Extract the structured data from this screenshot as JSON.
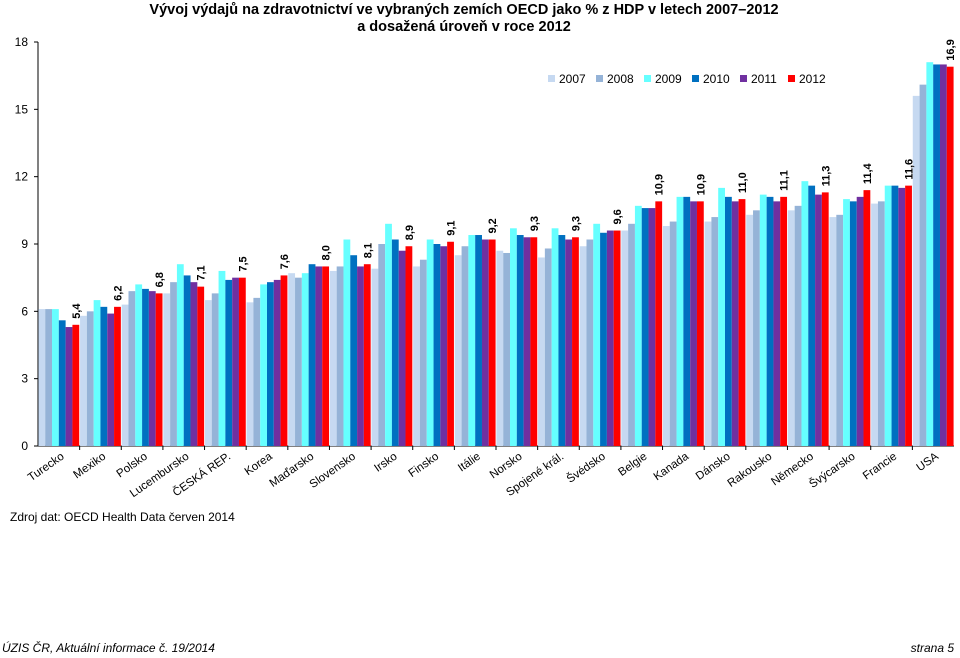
{
  "chart_data": {
    "type": "bar",
    "title": "Vývoj výdajů na zdravotnictví ve vybraných zemích OECD  jako % z HDP v letech 2007–2012",
    "subtitle": "a dosažená úroveň v roce 2012",
    "xlabel": "",
    "ylabel": "",
    "ylim": [
      0,
      18
    ],
    "yticks": [
      0,
      3,
      6,
      9,
      12,
      15,
      18
    ],
    "grid": false,
    "legend_position": "top-right",
    "categories": [
      "Turecko",
      "Mexiko",
      "Polsko",
      "Lucembursko",
      "ČESKÁ REP.",
      "Korea",
      "Maďarsko",
      "Slovensko",
      "Irsko",
      "Finsko",
      "Itálie",
      "Norsko",
      "Spojené král.",
      "Švédsko",
      "Belgie",
      "Kanada",
      "Dánsko",
      "Rakousko",
      "Německo",
      "Švýcarsko",
      "Francie",
      "USA"
    ],
    "series": [
      {
        "name": "2007",
        "color": "#c6d9f1",
        "values": [
          6.1,
          5.8,
          6.3,
          6.8,
          6.5,
          6.4,
          7.7,
          7.8,
          7.9,
          8.0,
          8.5,
          8.7,
          8.4,
          8.9,
          9.6,
          9.8,
          10.0,
          10.3,
          10.5,
          10.2,
          10.8,
          15.6
        ]
      },
      {
        "name": "2008",
        "color": "#95b3d7",
        "values": [
          6.1,
          6.0,
          6.9,
          7.3,
          6.8,
          6.6,
          7.5,
          8.0,
          9.0,
          8.3,
          8.9,
          8.6,
          8.8,
          9.2,
          9.9,
          10.0,
          10.2,
          10.5,
          10.7,
          10.3,
          10.9,
          16.1
        ]
      },
      {
        "name": "2009",
        "color": "#66ffff",
        "values": [
          6.1,
          6.5,
          7.2,
          8.1,
          7.8,
          7.2,
          7.7,
          9.2,
          9.9,
          9.2,
          9.4,
          9.7,
          9.7,
          9.9,
          10.7,
          11.1,
          11.5,
          11.2,
          11.8,
          11.0,
          11.6,
          17.1
        ]
      },
      {
        "name": "2010",
        "color": "#0070c0",
        "values": [
          5.6,
          6.2,
          7.0,
          7.6,
          7.4,
          7.3,
          8.1,
          8.5,
          9.2,
          9.0,
          9.4,
          9.4,
          9.4,
          9.5,
          10.6,
          11.1,
          11.1,
          11.1,
          11.6,
          10.9,
          11.6,
          17.0
        ]
      },
      {
        "name": "2011",
        "color": "#7030a0",
        "values": [
          5.3,
          5.9,
          6.9,
          7.3,
          7.5,
          7.4,
          8.0,
          8.0,
          8.7,
          8.9,
          9.2,
          9.3,
          9.2,
          9.6,
          10.6,
          10.9,
          10.9,
          10.9,
          11.2,
          11.1,
          11.5,
          17.0
        ]
      },
      {
        "name": "2012",
        "color": "#ff0000",
        "values": [
          5.4,
          6.2,
          6.8,
          7.1,
          7.5,
          7.6,
          8.0,
          8.1,
          8.9,
          9.1,
          9.2,
          9.3,
          9.3,
          9.6,
          10.9,
          10.9,
          11.0,
          11.1,
          11.3,
          11.4,
          11.6,
          16.9
        ]
      }
    ],
    "data_labels": [
      "5,4",
      "6,2",
      "6,8",
      "7,1",
      "7,5",
      "7,6",
      "8,0",
      "8,1",
      "8,9",
      "9,1",
      "9,2",
      "9,3",
      "9,3",
      "9,6",
      "10,9",
      "10,9",
      "11,0",
      "11,1",
      "11,3",
      "11,4",
      "11,6",
      "16,9"
    ],
    "ytick_labels": [
      "0",
      "3",
      "6",
      "9",
      "12",
      "15",
      "18"
    ]
  },
  "source": "Zdroj dat: OECD Health Data červen 2014",
  "footer": {
    "left": "ÚZIS ČR, Aktuální informace č. 19/2014",
    "right": "strana 5"
  }
}
